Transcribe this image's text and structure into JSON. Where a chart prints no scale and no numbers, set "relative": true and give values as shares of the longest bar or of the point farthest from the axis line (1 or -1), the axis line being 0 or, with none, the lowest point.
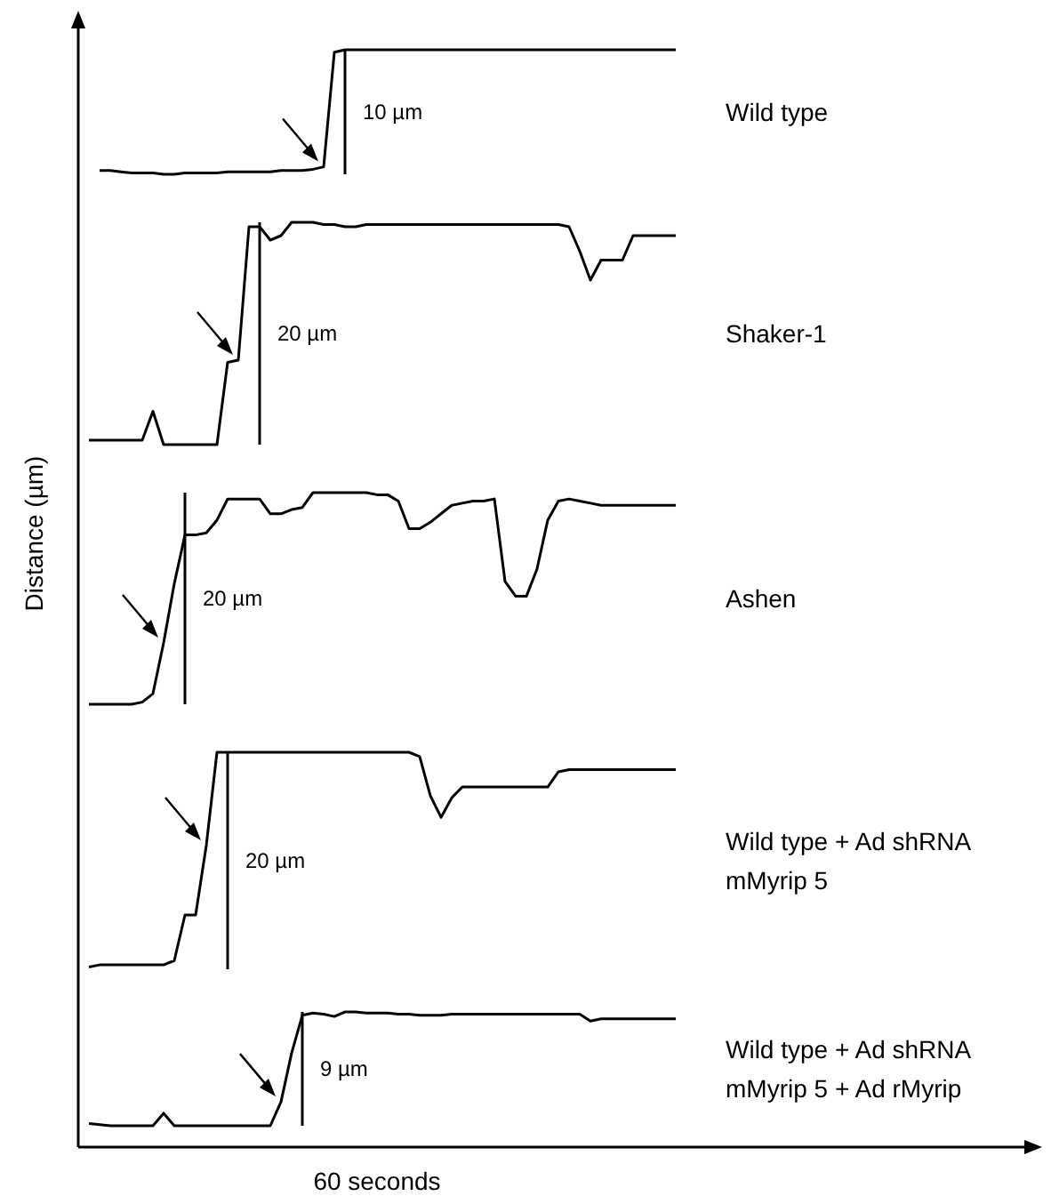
{
  "chart_data": [
    {
      "type": "line",
      "relative": true,
      "annotations": [
        "10 µm"
      ],
      "categories": [
        null,
        null,
        null,
        null,
        null,
        null,
        null,
        null,
        null,
        null,
        null,
        null,
        null,
        null,
        null,
        null,
        null,
        null,
        null,
        null,
        null,
        null,
        null,
        null,
        null,
        null,
        null,
        null,
        null,
        null,
        null,
        null,
        null,
        null,
        null,
        null,
        null,
        null,
        null,
        null,
        null,
        null,
        null,
        null,
        null,
        null,
        null,
        null,
        null,
        null,
        null,
        null,
        null,
        null,
        null,
        null
      ],
      "series": [
        {
          "name": "Wild type",
          "color": "#000000",
          "values": [
            null,
            0.03,
            0.03,
            0.02,
            0.01,
            0.01,
            0.01,
            0,
            0,
            0.01,
            0.01,
            0.01,
            0.01,
            0.02,
            0.02,
            0.02,
            0.02,
            0.02,
            0.03,
            0.03,
            0.03,
            0.04,
            0.06,
            0.98,
            1,
            1,
            1,
            1,
            1,
            1,
            1,
            1,
            1,
            1,
            1,
            1,
            1,
            1,
            1,
            1,
            1,
            1,
            1,
            1,
            1,
            1,
            1,
            1,
            1,
            1,
            1,
            1,
            1,
            1,
            1,
            1
          ]
        }
      ]
    },
    {
      "type": "line",
      "relative": true,
      "annotations": [
        "20 µm"
      ],
      "categories": [
        null,
        null,
        null,
        null,
        null,
        null,
        null,
        null,
        null,
        null,
        null,
        null,
        null,
        null,
        null,
        null,
        null,
        null,
        null,
        null,
        null,
        null,
        null,
        null,
        null,
        null,
        null,
        null,
        null,
        null,
        null,
        null,
        null,
        null,
        null,
        null,
        null,
        null,
        null,
        null,
        null,
        null,
        null,
        null,
        null,
        null,
        null,
        null,
        null,
        null,
        null,
        null,
        null,
        null,
        null,
        null
      ],
      "series": [
        {
          "name": "Shaker-1",
          "color": "#000000",
          "values": [
            0.02,
            0.02,
            0.02,
            0.02,
            0.02,
            0.02,
            0.15,
            0,
            0,
            0,
            0,
            0,
            0,
            0.37,
            0.38,
            0.98,
            0.98,
            0.92,
            0.94,
            1,
            1,
            1,
            0.99,
            0.99,
            0.98,
            0.98,
            0.99,
            0.99,
            0.99,
            0.99,
            0.99,
            0.99,
            0.99,
            0.99,
            0.99,
            0.99,
            0.99,
            0.99,
            0.99,
            0.99,
            0.99,
            0.99,
            0.99,
            0.99,
            0.99,
            0.98,
            0.87,
            0.74,
            0.83,
            0.83,
            0.83,
            0.94,
            0.94,
            0.94,
            0.94,
            0.94
          ]
        }
      ]
    },
    {
      "type": "line",
      "relative": true,
      "ylabel": "Distance (µm)",
      "annotations": [
        "20 µm"
      ],
      "categories": [
        null,
        null,
        null,
        null,
        null,
        null,
        null,
        null,
        null,
        null,
        null,
        null,
        null,
        null,
        null,
        null,
        null,
        null,
        null,
        null,
        null,
        null,
        null,
        null,
        null,
        null,
        null,
        null,
        null,
        null,
        null,
        null,
        null,
        null,
        null,
        null,
        null,
        null,
        null,
        null,
        null,
        null,
        null,
        null,
        null,
        null,
        null,
        null,
        null,
        null,
        null,
        null,
        null,
        null,
        null,
        null
      ],
      "series": [
        {
          "name": "Ashen",
          "color": "#000000",
          "values": [
            0,
            0,
            0,
            0,
            0,
            0.01,
            0.05,
            0.29,
            0.57,
            0.8,
            0.8,
            0.81,
            0.87,
            0.97,
            0.97,
            0.97,
            0.97,
            0.9,
            0.9,
            0.92,
            0.93,
            1,
            1,
            1,
            1,
            1,
            1,
            0.99,
            0.99,
            0.96,
            0.83,
            0.83,
            0.86,
            0.9,
            0.94,
            0.95,
            0.96,
            0.96,
            0.97,
            0.58,
            0.51,
            0.51,
            0.64,
            0.87,
            0.96,
            0.97,
            0.96,
            0.95,
            0.94,
            0.94,
            0.94,
            0.94,
            0.94,
            0.94,
            0.94,
            0.94
          ]
        }
      ]
    },
    {
      "type": "line",
      "relative": true,
      "annotations": [
        "20 µm"
      ],
      "categories": [
        null,
        null,
        null,
        null,
        null,
        null,
        null,
        null,
        null,
        null,
        null,
        null,
        null,
        null,
        null,
        null,
        null,
        null,
        null,
        null,
        null,
        null,
        null,
        null,
        null,
        null,
        null,
        null,
        null,
        null,
        null,
        null,
        null,
        null,
        null,
        null,
        null,
        null,
        null,
        null,
        null,
        null,
        null,
        null,
        null,
        null,
        null,
        null,
        null,
        null,
        null,
        null,
        null,
        null,
        null,
        null
      ],
      "series": [
        {
          "name": "Wild type + Ad shRNA mMyrip 5",
          "color": "#000000",
          "values": [
            0.01,
            0.02,
            0.02,
            0.02,
            0.02,
            0.02,
            0.02,
            0.02,
            0.04,
            0.25,
            0.25,
            0.57,
            1,
            1,
            1,
            1,
            1,
            1,
            1,
            1,
            1,
            1,
            1,
            1,
            1,
            1,
            1,
            1,
            1,
            1,
            1,
            0.98,
            0.8,
            0.7,
            0.79,
            0.84,
            0.84,
            0.84,
            0.84,
            0.84,
            0.84,
            0.84,
            0.84,
            0.84,
            0.91,
            0.92,
            0.92,
            0.92,
            0.92,
            0.92,
            0.92,
            0.92,
            0.92,
            0.92,
            0.92,
            0.92
          ]
        }
      ]
    },
    {
      "type": "line",
      "relative": true,
      "xlabel": "60 seconds",
      "annotations": [
        "9 µm"
      ],
      "categories": [
        null,
        null,
        null,
        null,
        null,
        null,
        null,
        null,
        null,
        null,
        null,
        null,
        null,
        null,
        null,
        null,
        null,
        null,
        null,
        null,
        null,
        null,
        null,
        null,
        null,
        null,
        null,
        null,
        null,
        null,
        null,
        null,
        null,
        null,
        null,
        null,
        null,
        null,
        null,
        null,
        null,
        null,
        null,
        null,
        null,
        null,
        null,
        null,
        null,
        null,
        null,
        null,
        null,
        null,
        null,
        null
      ],
      "series": [
        {
          "name": "Wild type + Ad shRNA mMyrip 5 + Ad rMyrip",
          "color": "#000000",
          "values": [
            0.02,
            0.01,
            0,
            0,
            0,
            0,
            0,
            0.11,
            0,
            0,
            0,
            0,
            0,
            0,
            0,
            0,
            0,
            0,
            0.21,
            0.64,
            0.97,
            0.99,
            0.98,
            0.96,
            1,
            1,
            0.99,
            0.99,
            0.99,
            0.98,
            0.98,
            0.97,
            0.97,
            0.97,
            0.98,
            0.98,
            0.98,
            0.98,
            0.98,
            0.98,
            0.98,
            0.98,
            0.98,
            0.98,
            0.98,
            0.98,
            0.98,
            0.92,
            0.94,
            0.94,
            0.94,
            0.94,
            0.94,
            0.94,
            0.94,
            0.94
          ]
        }
      ]
    }
  ]
}
